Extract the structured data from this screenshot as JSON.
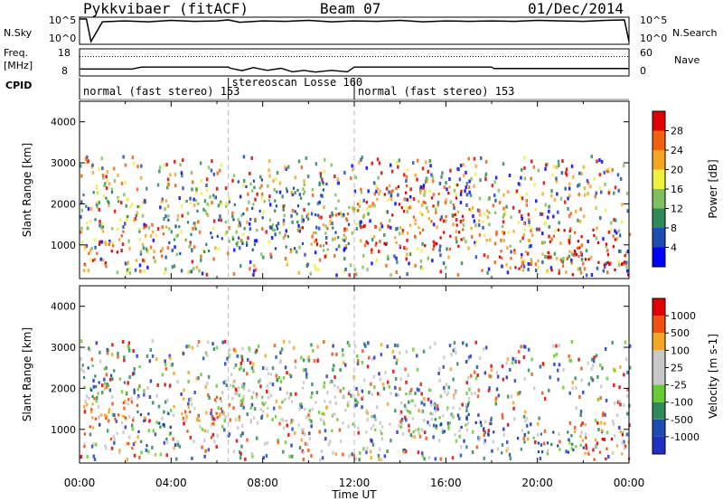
{
  "header": {
    "station": "Pykkvibaer (fitACF)",
    "beam": "Beam 07",
    "date": "01/Dec/2014"
  },
  "panels": {
    "nsky_label": "N.Sky",
    "nsky_ticks": [
      "10^5",
      "10^0"
    ],
    "nsearch_label": "N.Search",
    "nsearch_ticks": [
      "10^5",
      "10^0"
    ],
    "freq_label": "Freq.",
    "freq_unit": "[MHz]",
    "freq_ticks": [
      "18",
      "8"
    ],
    "nave_label": "Nave",
    "nave_ticks": [
      "60",
      "0"
    ],
    "cpid_label": "CPID",
    "cpid_modes": [
      {
        "text": "normal (fast stereo) 153",
        "start": 0,
        "end": 6.5
      },
      {
        "text": "stereoscan Losse 160",
        "start": 6.5,
        "end": 12
      },
      {
        "text": "normal (fast stereo) 153",
        "start": 12,
        "end": 24
      }
    ]
  },
  "colors": {
    "power": [
      "#0000ff",
      "#1e4bb4",
      "#2e8b57",
      "#7fbf5f",
      "#f0f040",
      "#f5a623",
      "#f06010",
      "#e00000"
    ],
    "velocity": [
      "#e00000",
      "#f05010",
      "#f5a623",
      "#c8c8c8",
      "#c8c8c8",
      "#66cc33",
      "#2e8b57",
      "#1e4bb4",
      "#2030c0"
    ]
  },
  "chart_data": [
    {
      "type": "line",
      "title": "N.Sky / N.Search",
      "x_range": [
        0,
        24
      ],
      "series": [
        {
          "name": "N.Sky",
          "x": [
            0,
            0.3,
            0.5,
            1,
            2,
            3,
            4,
            5,
            6,
            6.5,
            7,
            8,
            9,
            10,
            11,
            12,
            13,
            14,
            15,
            16,
            17,
            18,
            19,
            20,
            21,
            22,
            23,
            23.8,
            24
          ],
          "values": [
            5,
            5,
            0.2,
            4.4,
            4.6,
            4.4,
            4.7,
            4.5,
            4.6,
            4.8,
            4.3,
            4.6,
            4.5,
            4.7,
            4.4,
            4.6,
            4.5,
            4.7,
            4.4,
            4.6,
            4.5,
            4.6,
            4.5,
            4.7,
            4.6,
            4.5,
            4.7,
            4.8,
            0.2
          ]
        }
      ]
    },
    {
      "type": "line",
      "title": "Freq. / Nave",
      "x_range": [
        0,
        24
      ],
      "ylim_freq": [
        8,
        18
      ],
      "series": [
        {
          "name": "Freq.",
          "x": [
            0,
            2.3,
            2.7,
            6.5,
            6.6,
            7.1,
            7.6,
            8.2,
            8.8,
            9.3,
            9.8,
            10.3,
            11,
            11.7,
            12,
            13,
            18,
            18.1,
            24
          ],
          "values": [
            10.2,
            10.2,
            11,
            11,
            10.5,
            9.5,
            10.8,
            9.6,
            10.5,
            9,
            9.6,
            8.9,
            9.6,
            9,
            11,
            11,
            11,
            10.4,
            10.4
          ]
        },
        {
          "name": "Nave",
          "x": [
            0,
            24
          ],
          "values": [
            45,
            45
          ]
        }
      ]
    },
    {
      "type": "heatmap",
      "title": "Power",
      "xlabel": "",
      "ylabel": "Slant Range [km]",
      "x_range": [
        0,
        24
      ],
      "ylim": [
        180,
        4500
      ],
      "yticks": [
        1000,
        2000,
        3000,
        4000
      ],
      "colorbar_label": "Power [dB]",
      "colorbar_ticks": [
        4,
        8,
        12,
        16,
        20,
        24,
        28
      ],
      "colorbar_range": [
        0,
        32
      ],
      "regions": [
        {
          "t0": 0.0,
          "t1": 2.0,
          "r0": 500,
          "r1": 1400,
          "level": 6
        },
        {
          "t0": 0.0,
          "t1": 2.6,
          "r0": 1400,
          "r1": 2600,
          "level": 3
        },
        {
          "t0": 2.4,
          "t1": 3.8,
          "r0": 600,
          "r1": 1500,
          "level": 5
        },
        {
          "t0": 3.8,
          "t1": 6.4,
          "r0": 800,
          "r1": 1900,
          "level": 2
        },
        {
          "t0": 4.5,
          "t1": 6.4,
          "r0": 1900,
          "r1": 2400,
          "level": 3
        },
        {
          "t0": 6.5,
          "t1": 11.8,
          "r0": 900,
          "r1": 2700,
          "level": 2
        },
        {
          "t0": 9.5,
          "t1": 11.9,
          "r0": 1000,
          "r1": 1800,
          "level": 6
        },
        {
          "t0": 12.0,
          "t1": 17.0,
          "r0": 900,
          "r1": 2500,
          "level": 6
        },
        {
          "t0": 17.0,
          "t1": 20.5,
          "r0": 1000,
          "r1": 1900,
          "level": 4
        },
        {
          "t0": 17.5,
          "t1": 22.0,
          "r0": 400,
          "r1": 900,
          "level": 6
        },
        {
          "t0": 20.5,
          "t1": 24.0,
          "r0": 300,
          "r1": 1400,
          "level": 7
        }
      ]
    },
    {
      "type": "heatmap",
      "title": "Velocity",
      "xlabel": "Time UT",
      "ylabel": "Slant Range [km]",
      "x_range": [
        0,
        24
      ],
      "xticks": [
        "00:00",
        "04:00",
        "08:00",
        "12:00",
        "16:00",
        "20:00",
        "00:00"
      ],
      "ylim": [
        180,
        4500
      ],
      "yticks": [
        1000,
        2000,
        3000,
        4000
      ],
      "colorbar_label": "Velocity [m s-1]",
      "colorbar_ticks": [
        1000,
        500,
        100,
        25,
        -25,
        -100,
        -500,
        -1000
      ],
      "regions": [
        {
          "t0": 0.0,
          "t1": 2.5,
          "r0": 500,
          "r1": 1800,
          "level": 2
        },
        {
          "t0": 0.0,
          "t1": 2.6,
          "r0": 1800,
          "r1": 2600,
          "level": 6
        },
        {
          "t0": 2.5,
          "t1": 4.0,
          "r0": 600,
          "r1": 1500,
          "level": 7
        },
        {
          "t0": 4.0,
          "t1": 6.4,
          "r0": 800,
          "r1": 1900,
          "level": 2
        },
        {
          "t0": 6.5,
          "t1": 9.5,
          "r0": 1200,
          "r1": 2600,
          "level": 4
        },
        {
          "t0": 9.5,
          "t1": 12.0,
          "r0": 1000,
          "r1": 2200,
          "level": 4
        },
        {
          "t0": 12.0,
          "t1": 17.0,
          "r0": 900,
          "r1": 2000,
          "level": 4
        },
        {
          "t0": 15.5,
          "t1": 18.0,
          "r0": 800,
          "r1": 1400,
          "level": 7
        },
        {
          "t0": 18.0,
          "t1": 22.0,
          "r0": 400,
          "r1": 1000,
          "level": 6
        },
        {
          "t0": 21.5,
          "t1": 24.0,
          "r0": 300,
          "r1": 1200,
          "level": 1
        }
      ]
    }
  ]
}
